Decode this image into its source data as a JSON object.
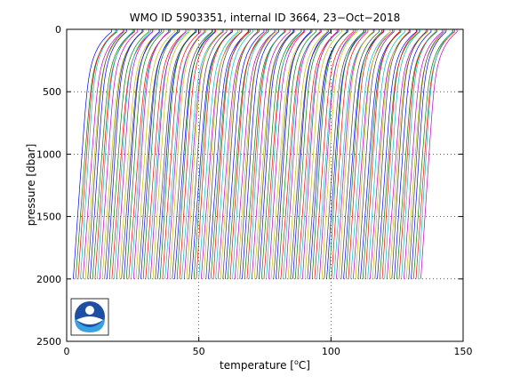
{
  "chart_data": {
    "type": "line",
    "title": "WMO ID 5903351, internal ID 3664, 23−Oct−2018",
    "xlabel": "temperature [°C]",
    "xlabel_parts": {
      "pre": "temperature [",
      "sup": "o",
      "post": "C]"
    },
    "ylabel": "pressure [dbar]",
    "xlim": [
      0,
      150
    ],
    "ylim": [
      2500,
      0
    ],
    "x_ticks": [
      0,
      50,
      100,
      150
    ],
    "y_ticks": [
      0,
      500,
      1000,
      1500,
      2000,
      2500
    ],
    "x_tick_labels": [
      "0",
      "50",
      "100",
      "150"
    ],
    "y_tick_labels": [
      "0",
      "500",
      "1000",
      "1500",
      "2000",
      "2500"
    ],
    "grid": true,
    "legend": "none",
    "profile_family": {
      "description_of_mark": "waterfall of temperature profiles, each offset slightly in temperature",
      "count": 145,
      "first_surface_temperature": 17,
      "last_surface_temperature": 148,
      "temperature_at_2000dbar_first": 2.5,
      "temperature_at_2000dbar_last": 134,
      "max_pressure": 2000,
      "line_colors": [
        "#0000ff",
        "#008000",
        "#ff0000",
        "#00bfbf",
        "#bf00bf",
        "#bfbf00",
        "#404040"
      ]
    },
    "logo": "noaa-logo"
  }
}
